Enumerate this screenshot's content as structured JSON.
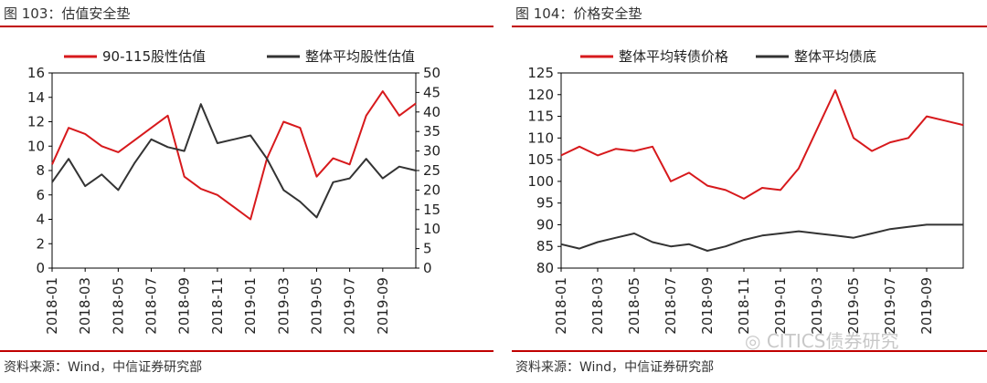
{
  "colors": {
    "accent": "#D7191C",
    "series_red": "#D7191C",
    "series_dark": "#333333",
    "rule": "#C00000"
  },
  "left": {
    "title": "图 103：估值安全垫",
    "source": "资料来源：Wind，中信证券研究部"
  },
  "right": {
    "title": "图 104：价格安全垫",
    "source": "资料来源：Wind，中信证券研究部",
    "watermark": "CITICS债券研究",
    "watermark_icon": "wechat-icon"
  },
  "chart_data": [
    {
      "type": "line",
      "x_ticks": [
        "2018-01",
        "2018-03",
        "2018-05",
        "2018-07",
        "2018-09",
        "2018-11",
        "2019-01",
        "2019-03",
        "2019-05",
        "2019-07",
        "2019-09"
      ],
      "ylim_left": [
        0,
        16
      ],
      "yticks_left": [
        "0",
        "2",
        "4",
        "6",
        "8",
        "10",
        "12",
        "14",
        "16"
      ],
      "ylim_right": [
        0,
        50
      ],
      "yticks_right": [
        "0",
        "5",
        "10",
        "15",
        "20",
        "25",
        "30",
        "35",
        "40",
        "45",
        "50"
      ],
      "legend_position": "top",
      "series": [
        {
          "name": "90-115股性估值",
          "axis": "left",
          "color": "#D7191C",
          "x": [
            "2018-01",
            "2018-02",
            "2018-03",
            "2018-04",
            "2018-05",
            "2018-06",
            "2018-07",
            "2018-08",
            "2018-09",
            "2018-10",
            "2018-11",
            "2018-12",
            "2019-01",
            "2019-02",
            "2019-03",
            "2019-04",
            "2019-05",
            "2019-06",
            "2019-07",
            "2019-08",
            "2019-09",
            "2019-10",
            "2019-11"
          ],
          "values": [
            8.5,
            11.5,
            11.0,
            10.0,
            9.5,
            10.5,
            11.5,
            12.5,
            7.5,
            6.5,
            6.0,
            5.0,
            4.0,
            9.0,
            12.0,
            11.5,
            7.5,
            9.0,
            8.5,
            12.5,
            14.5,
            12.5,
            13.5
          ]
        },
        {
          "name": "整体平均股性估值",
          "axis": "right",
          "color": "#333333",
          "x": [
            "2018-01",
            "2018-02",
            "2018-03",
            "2018-04",
            "2018-05",
            "2018-06",
            "2018-07",
            "2018-08",
            "2018-09",
            "2018-10",
            "2018-11",
            "2018-12",
            "2019-01",
            "2019-02",
            "2019-03",
            "2019-04",
            "2019-05",
            "2019-06",
            "2019-07",
            "2019-08",
            "2019-09",
            "2019-10",
            "2019-11"
          ],
          "values": [
            22,
            28,
            21,
            24,
            20,
            27,
            33,
            31,
            30,
            42,
            32,
            33,
            34,
            28,
            20,
            17,
            13,
            22,
            23,
            28,
            23,
            26,
            25
          ]
        }
      ]
    },
    {
      "type": "line",
      "x_ticks": [
        "2018-01",
        "2018-03",
        "2018-05",
        "2018-07",
        "2018-09",
        "2018-11",
        "2019-01",
        "2019-03",
        "2019-05",
        "2019-07",
        "2019-09"
      ],
      "ylim": [
        80,
        125
      ],
      "yticks": [
        "80",
        "85",
        "90",
        "95",
        "100",
        "105",
        "110",
        "115",
        "120",
        "125"
      ],
      "legend_position": "top",
      "series": [
        {
          "name": "整体平均转债价格",
          "color": "#D7191C",
          "x": [
            "2018-01",
            "2018-02",
            "2018-03",
            "2018-04",
            "2018-05",
            "2018-06",
            "2018-07",
            "2018-08",
            "2018-09",
            "2018-10",
            "2018-11",
            "2018-12",
            "2019-01",
            "2019-02",
            "2019-03",
            "2019-04",
            "2019-05",
            "2019-06",
            "2019-07",
            "2019-08",
            "2019-09",
            "2019-10",
            "2019-11"
          ],
          "values": [
            106,
            108,
            106,
            107.5,
            107,
            108,
            100,
            102,
            99,
            98,
            96,
            98.5,
            98,
            103,
            112,
            121,
            110,
            107,
            109,
            110,
            115,
            114,
            113
          ]
        },
        {
          "name": "整体平均债底",
          "color": "#333333",
          "x": [
            "2018-01",
            "2018-02",
            "2018-03",
            "2018-04",
            "2018-05",
            "2018-06",
            "2018-07",
            "2018-08",
            "2018-09",
            "2018-10",
            "2018-11",
            "2018-12",
            "2019-01",
            "2019-02",
            "2019-03",
            "2019-04",
            "2019-05",
            "2019-06",
            "2019-07",
            "2019-08",
            "2019-09",
            "2019-10",
            "2019-11"
          ],
          "values": [
            85.5,
            84.5,
            86,
            87,
            88,
            86,
            85,
            85.5,
            84,
            85,
            86.5,
            87.5,
            88,
            88.5,
            88,
            87.5,
            87,
            88,
            89,
            89.5,
            90,
            90,
            90
          ]
        }
      ]
    }
  ]
}
